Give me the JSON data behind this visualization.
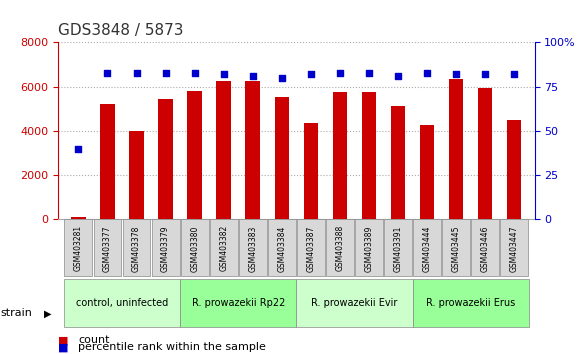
{
  "title": "GDS3848 / 5873",
  "samples": [
    "GSM403281",
    "GSM403377",
    "GSM403378",
    "GSM403379",
    "GSM403380",
    "GSM403382",
    "GSM403383",
    "GSM403384",
    "GSM403387",
    "GSM403388",
    "GSM403389",
    "GSM403391",
    "GSM403444",
    "GSM403445",
    "GSM403446",
    "GSM403447"
  ],
  "counts": [
    100,
    5200,
    4000,
    5450,
    5800,
    6250,
    6250,
    5550,
    4350,
    5750,
    5750,
    5150,
    4250,
    6350,
    5950,
    4500
  ],
  "percentiles": [
    40,
    83,
    83,
    83,
    83,
    82,
    81,
    80,
    82,
    83,
    83,
    81,
    83,
    82,
    82,
    82
  ],
  "groups": [
    {
      "label": "control, uninfected",
      "start": 0,
      "end": 4,
      "color": "#ccffcc"
    },
    {
      "label": "R. prowazekii Rp22",
      "start": 4,
      "end": 8,
      "color": "#99ff99"
    },
    {
      "label": "R. prowazekii Evir",
      "start": 8,
      "end": 12,
      "color": "#ccffcc"
    },
    {
      "label": "R. prowazekii Erus",
      "start": 12,
      "end": 16,
      "color": "#99ff99"
    }
  ],
  "ylim_left": [
    0,
    8000
  ],
  "ylim_right": [
    0,
    100
  ],
  "yticks_left": [
    0,
    2000,
    4000,
    6000,
    8000
  ],
  "yticks_right": [
    0,
    25,
    50,
    75,
    100
  ],
  "bar_color": "#cc0000",
  "dot_color": "#0000cc",
  "bg_color": "#e8e8e8",
  "plot_bg": "#ffffff",
  "title_color": "#333333",
  "left_axis_color": "#cc0000",
  "right_axis_color": "#0000cc",
  "strain_label": "strain",
  "legend_count": "count",
  "legend_percentile": "percentile rank within the sample"
}
